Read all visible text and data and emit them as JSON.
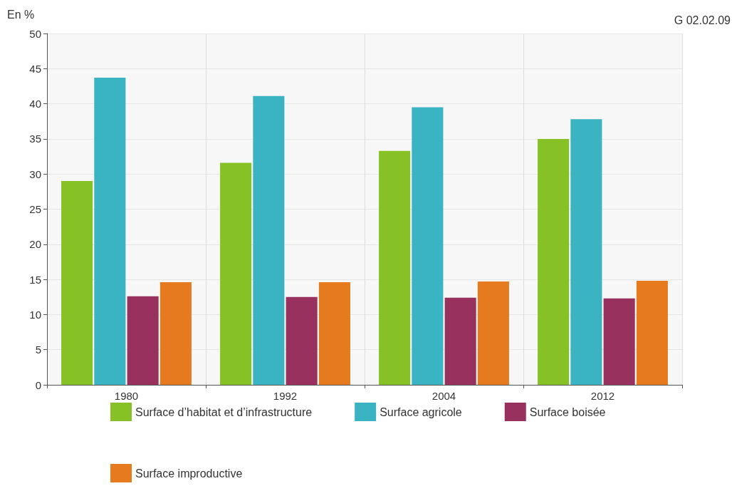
{
  "chart_data": {
    "type": "bar",
    "ylabel": "En %",
    "annotations": [
      "G 02.02.09"
    ],
    "categories": [
      "1980",
      "1992",
      "2004",
      "2012"
    ],
    "series": [
      {
        "name": "Surface d’habitat et d’infrastructure",
        "color": "#86c226",
        "values": [
          29.0,
          31.6,
          33.3,
          35.0
        ]
      },
      {
        "name": "Surface agricole",
        "color": "#3ab3c3",
        "values": [
          43.7,
          41.1,
          39.5,
          37.8
        ]
      },
      {
        "name": "Surface boisée",
        "color": "#99315f",
        "values": [
          12.6,
          12.5,
          12.4,
          12.3
        ]
      },
      {
        "name": "Surface improductive",
        "color": "#e57a1e",
        "values": [
          14.6,
          14.6,
          14.7,
          14.8
        ]
      }
    ],
    "ylim": [
      0,
      50
    ],
    "yticks": [
      0,
      5,
      10,
      15,
      20,
      25,
      30,
      35,
      40,
      45,
      50
    ],
    "grid": true,
    "legend": "bottom"
  }
}
